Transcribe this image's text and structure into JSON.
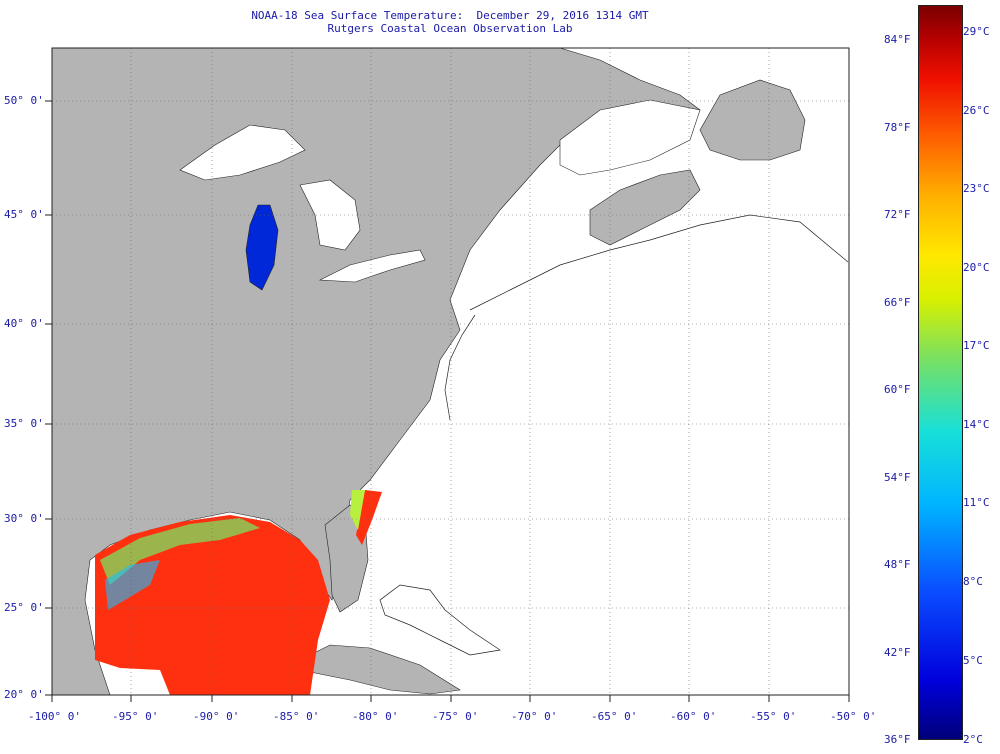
{
  "title": {
    "line1": "NOAA-18 Sea Surface Temperature:  December 29, 2016 1314 GMT",
    "line2": "Rutgers Coastal Ocean Observation Lab"
  },
  "lat_labels": [
    "50° 0'",
    "45° 0'",
    "40° 0'",
    "35° 0'",
    "30° 0'",
    "25° 0'",
    "20° 0'"
  ],
  "lon_labels": [
    "-100° 0'",
    "-95° 0'",
    "-90° 0'",
    "-85° 0'",
    "-80° 0'",
    "-75° 0'",
    "-70° 0'",
    "-65° 0'",
    "-60° 0'",
    "-55° 0'",
    "-50° 0'"
  ],
  "colorbar": {
    "fahrenheit": [
      "84°F",
      "78°F",
      "72°F",
      "66°F",
      "60°F",
      "54°F",
      "48°F",
      "42°F",
      "36°F"
    ],
    "celsius": [
      "29°C",
      "26°C",
      "23°C",
      "20°C",
      "17°C",
      "14°C",
      "11°C",
      "8°C",
      "5°C",
      "2°C"
    ]
  },
  "colors": {
    "land": "#b4b4b4",
    "water_no_data": "#ffffff",
    "label_text": "#1a1aa8",
    "warm_sst": "#ff3010",
    "cold_sst": "#0028d8"
  }
}
